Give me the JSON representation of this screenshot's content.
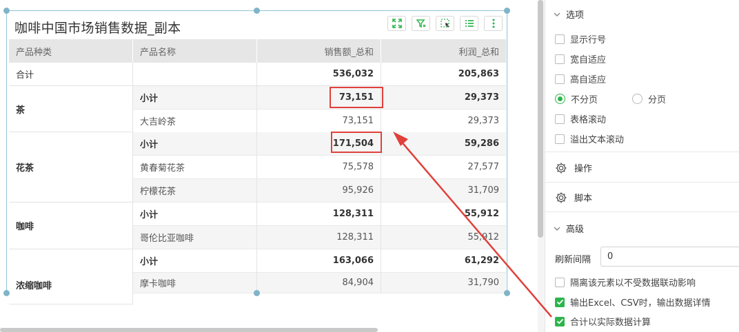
{
  "widget": {
    "title": "咖啡中国市场销售数据_副本",
    "tools": [
      "fullscreen-icon",
      "filter-icon",
      "select-icon",
      "list-icon",
      "more-icon"
    ]
  },
  "table": {
    "headers": [
      "产品种类",
      "产品名称",
      "销售额_总和",
      "利润_总和"
    ],
    "total": {
      "label": "合计",
      "sales": "536,032",
      "profit": "205,863"
    },
    "groups": [
      {
        "name": "茶",
        "rows": [
          {
            "name": "小计",
            "sales": "73,151",
            "profit": "29,373"
          },
          {
            "name": "大吉岭茶",
            "sales": "73,151",
            "profit": "29,373"
          }
        ]
      },
      {
        "name": "花茶",
        "rows": [
          {
            "name": "小计",
            "sales": "171,504",
            "profit": "59,286"
          },
          {
            "name": "黄春菊花茶",
            "sales": "75,578",
            "profit": "27,577"
          },
          {
            "name": "柠檬花茶",
            "sales": "95,926",
            "profit": "31,709"
          }
        ]
      },
      {
        "name": "咖啡",
        "rows": [
          {
            "name": "小计",
            "sales": "128,311",
            "profit": "55,912"
          },
          {
            "name": "哥伦比亚咖啡",
            "sales": "128,311",
            "profit": "55,912"
          }
        ]
      },
      {
        "name": "浓缩咖啡",
        "rows": [
          {
            "name": "小计",
            "sales": "163,066",
            "profit": "61,292"
          },
          {
            "name": "摩卡咖啡",
            "sales": "84,904",
            "profit": "31,790"
          }
        ]
      }
    ]
  },
  "panel": {
    "options_title": "选项",
    "options": [
      {
        "label": "显示行号",
        "checked": false
      },
      {
        "label": "宽自适应",
        "checked": false
      },
      {
        "label": "高自适应",
        "checked": false
      }
    ],
    "paging": {
      "no_paging": "不分页",
      "paging": "分页",
      "selected": "不分页"
    },
    "options2": [
      {
        "label": "表格滚动",
        "checked": false
      },
      {
        "label": "溢出文本滚动",
        "checked": false
      }
    ],
    "operation_label": "操作",
    "script_label": "脚本",
    "advanced_title": "高级",
    "refresh_label": "刷新间隔",
    "refresh_value": "0",
    "advanced_options": [
      {
        "label": "隔离该元素以不受数据联动影响",
        "checked": false
      },
      {
        "label": "输出Excel、CSV时，输出数据详情",
        "checked": true
      },
      {
        "label": "合计以实际数据计算",
        "checked": true
      }
    ]
  },
  "colors": {
    "accent": "#2db54c",
    "highlight": "#e0403a",
    "selection": "#8fc3d6"
  }
}
